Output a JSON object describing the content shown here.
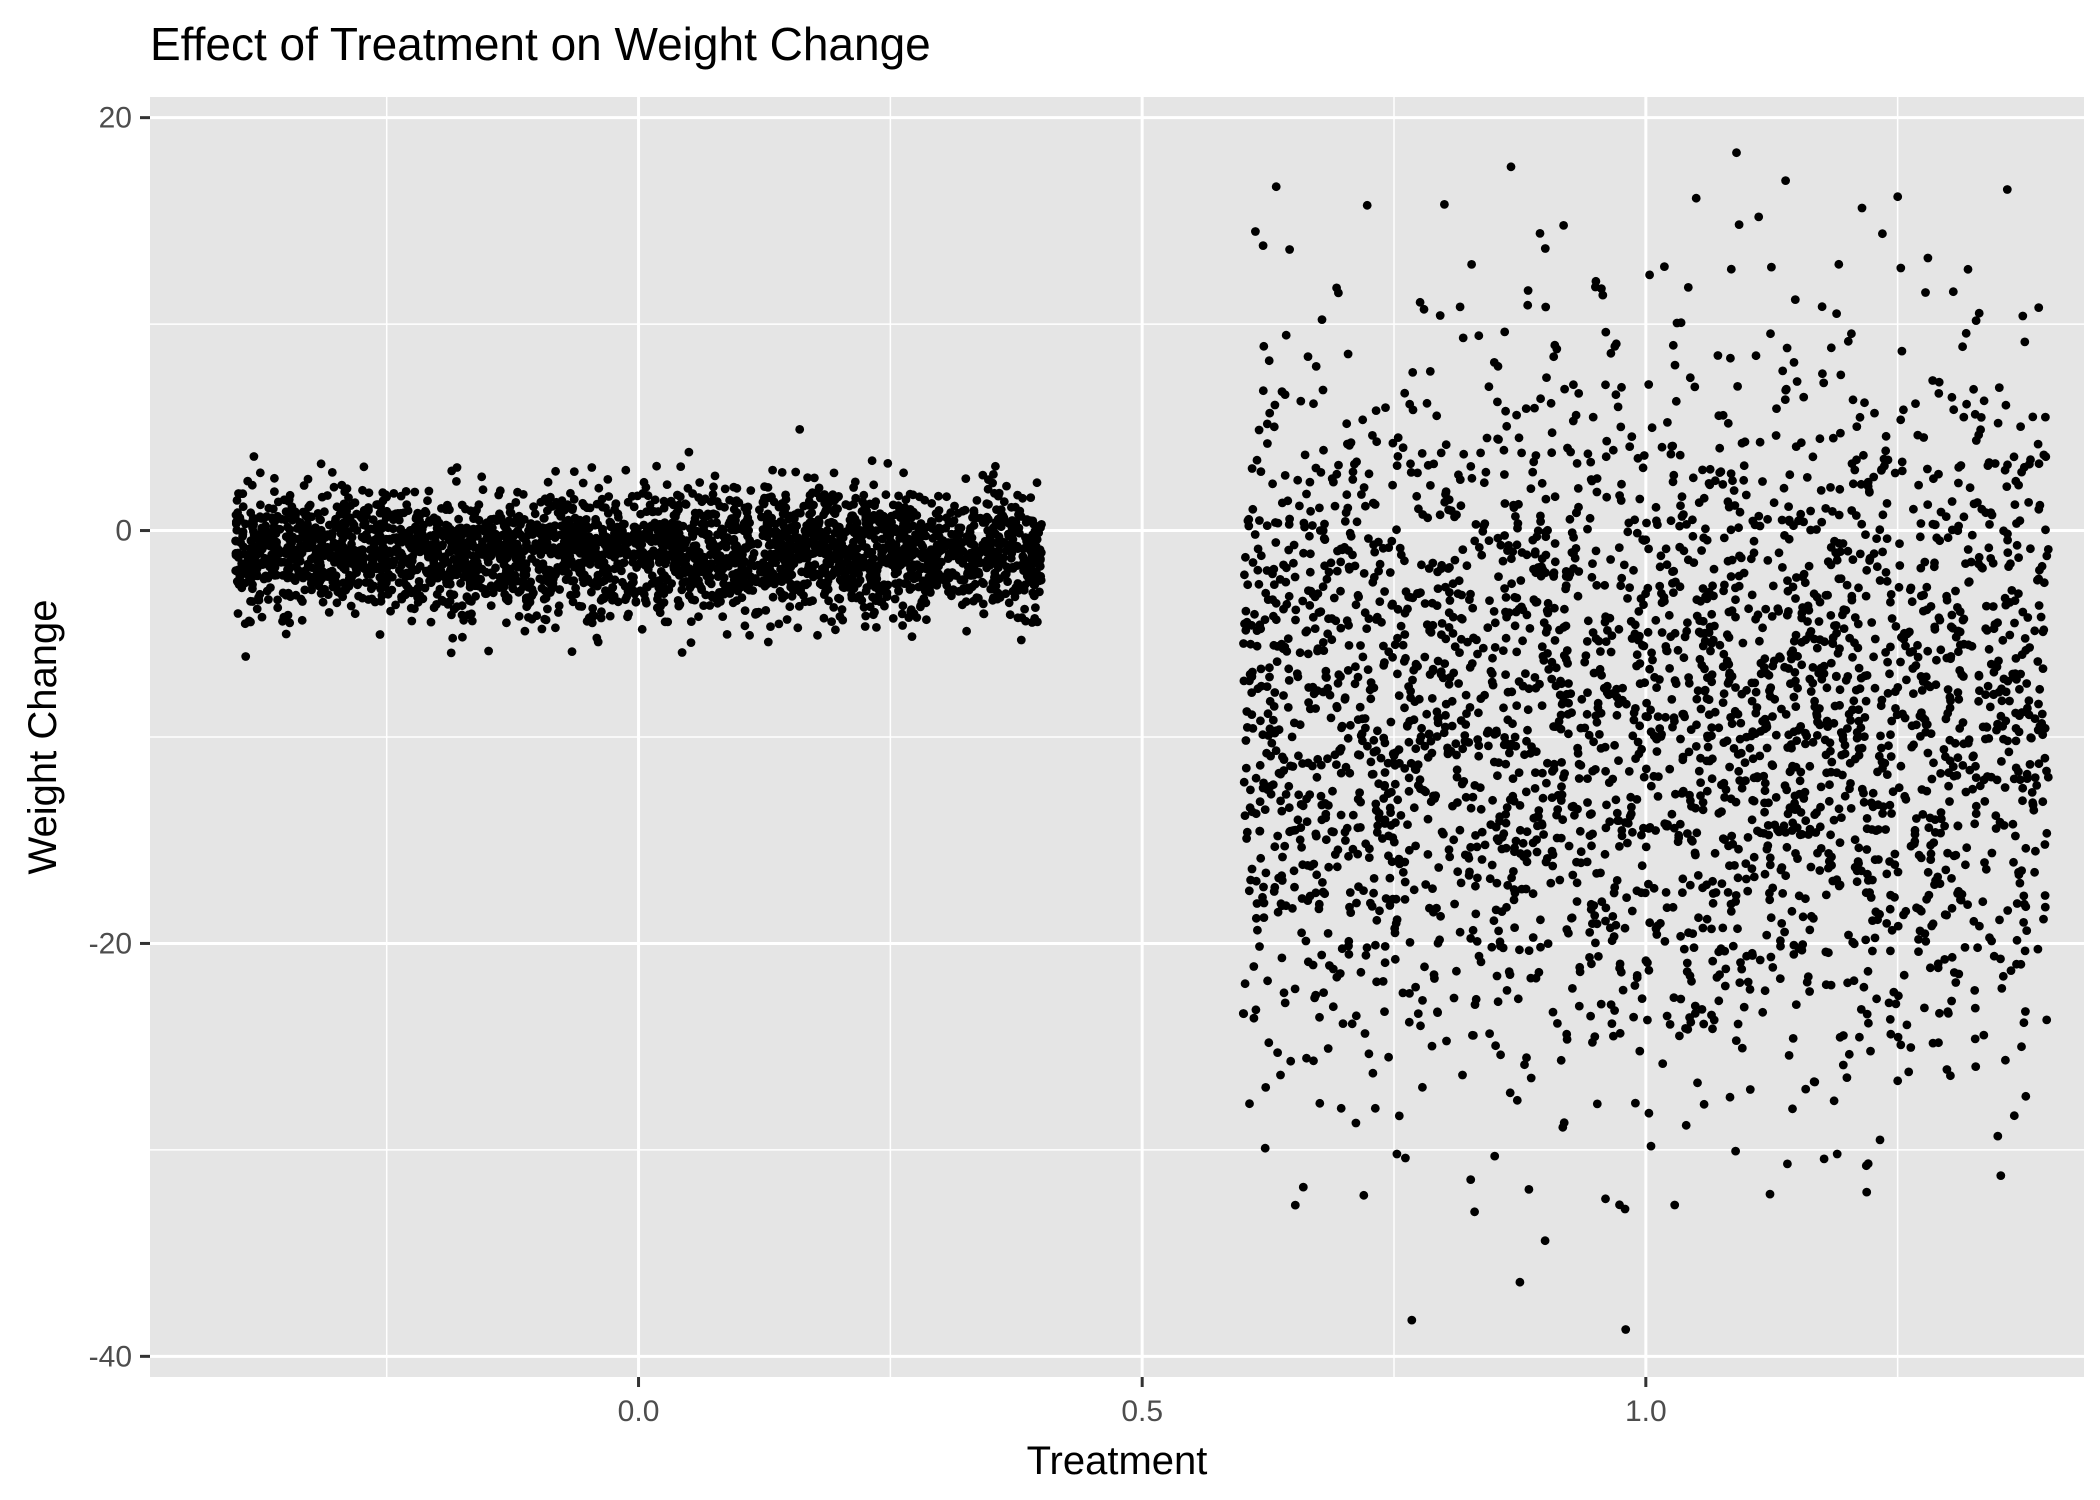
{
  "chart_data": {
    "type": "scatter",
    "title": "Effect of Treatment on Weight Change",
    "xlabel": "Treatment",
    "ylabel": "Weight Change",
    "xlim": [
      -0.485,
      1.435
    ],
    "ylim": [
      -41,
      21
    ],
    "x_ticks": [
      0.0,
      0.5,
      1.0
    ],
    "x_tick_labels": [
      "0.0",
      "0.5",
      "1.0"
    ],
    "y_ticks": [
      -40,
      -20,
      0,
      20
    ],
    "y_tick_labels": [
      "-40",
      "-20",
      "0",
      "20"
    ],
    "grid": true,
    "panel_background": "#e5e5e5",
    "grid_color": "#ffffff",
    "point_color": "#000000",
    "groups": [
      {
        "treatment": 0,
        "jitter_range": [
          -0.4,
          0.4
        ],
        "n_points_approx": 3000,
        "y_mean": -1,
        "y_sd": 1.5,
        "y_range": [
          -6,
          5
        ],
        "x": [
          -0.4,
          -0.2,
          0.0,
          0.2,
          0.4,
          -0.39,
          0.16,
          -0.04,
          0.05,
          0.38
        ],
        "y": [
          -0.5,
          0.1,
          -1.2,
          -0.8,
          0.3,
          -6.1,
          4.9,
          -5.4,
          3.8,
          -5.3
        ]
      },
      {
        "treatment": 1,
        "jitter_range": [
          0.6,
          1.4
        ],
        "n_points_approx": 3000,
        "y_mean": -9,
        "y_sd": 8.5,
        "y_range": [
          -39,
          18
        ],
        "x": [
          0.98,
          1.09,
          1.05,
          0.8,
          0.62,
          0.9,
          0.83,
          0.66,
          0.72,
          1.19,
          1.28,
          1.39,
          0.85,
          1.0
        ],
        "y": [
          -38.7,
          18.3,
          16.1,
          15.8,
          13.8,
          -34.4,
          -33.0,
          -31.8,
          -32.2,
          -30.2,
          13.2,
          10.8,
          -30.3,
          -9.0
        ]
      }
    ]
  }
}
